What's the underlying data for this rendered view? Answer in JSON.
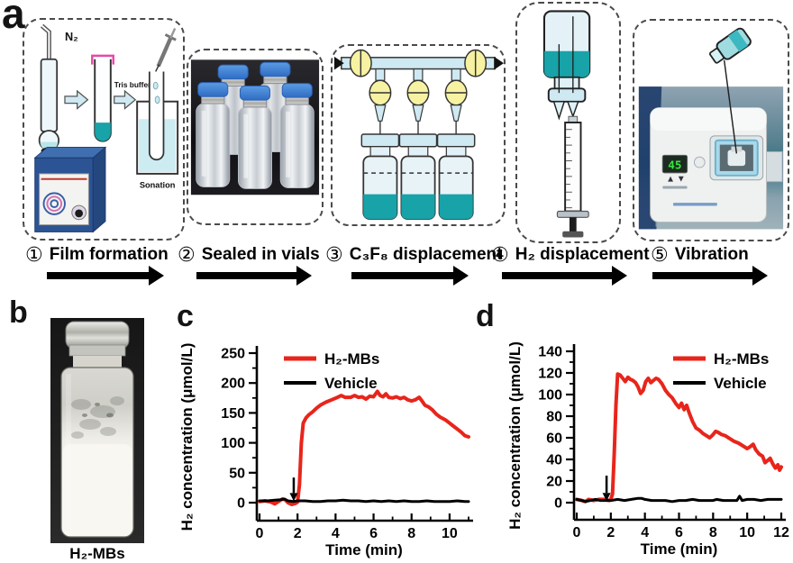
{
  "labels": {
    "a": "a",
    "b": "b",
    "c": "c",
    "d": "d"
  },
  "panel_a": {
    "steps": [
      {
        "number": "①",
        "label": "Film formation"
      },
      {
        "number": "②",
        "label": "Sealed in vials"
      },
      {
        "number": "③",
        "label": "C₃F₈ displacement"
      },
      {
        "number": "④",
        "label": "H₂ displacement"
      },
      {
        "number": "⑤",
        "label": "Vibration"
      }
    ],
    "film_formation": {
      "gas": "N₂",
      "buffer": "Tris buffer",
      "sonication": "Sonation"
    },
    "vibration": {
      "display": "45"
    }
  },
  "panel_b": {
    "caption": "H₂-MBs"
  },
  "colors": {
    "series_red": "#e8251b",
    "series_black": "#000000",
    "teal_liquid": "#17a3a8",
    "light_blue_fill": "#cfe9f2",
    "valve_yellow": "#f6f2a2",
    "vial_cap_blue": "#3f7fd6",
    "display_green": "#35e83a"
  },
  "chart_data": [
    {
      "id": "c",
      "type": "line",
      "title": "",
      "xlabel": "Time (min)",
      "ylabel": "H₂ concentration (μmol/L)",
      "xlim": [
        0,
        11
      ],
      "ylim": [
        0,
        250
      ],
      "xticks": [
        0,
        2,
        4,
        6,
        8,
        10
      ],
      "yticks": [
        0,
        50,
        100,
        150,
        200,
        250
      ],
      "x_minor_step": 1,
      "y_minor_step": 25,
      "legend_position": "top-left",
      "injection_arrow_x": 1.8,
      "arrow_y": [
        42,
        16
      ],
      "grid": false,
      "series": [
        {
          "name": "H₂-MBs",
          "color": "#e8251b",
          "width": 4,
          "points": [
            [
              0,
              2
            ],
            [
              0.3,
              3
            ],
            [
              0.6,
              1
            ],
            [
              0.8,
              -2
            ],
            [
              1.0,
              2
            ],
            [
              1.2,
              6
            ],
            [
              1.35,
              5
            ],
            [
              1.5,
              0
            ],
            [
              1.7,
              -3
            ],
            [
              1.9,
              -1
            ],
            [
              2.0,
              1
            ],
            [
              2.1,
              30
            ],
            [
              2.2,
              100
            ],
            [
              2.3,
              133
            ],
            [
              2.45,
              142
            ],
            [
              2.6,
              147
            ],
            [
              2.8,
              152
            ],
            [
              3.0,
              158
            ],
            [
              3.2,
              163
            ],
            [
              3.5,
              168
            ],
            [
              3.8,
              172
            ],
            [
              4.1,
              176
            ],
            [
              4.3,
              179
            ],
            [
              4.5,
              176
            ],
            [
              4.8,
              176
            ],
            [
              5.0,
              179
            ],
            [
              5.2,
              176
            ],
            [
              5.4,
              177
            ],
            [
              5.6,
              173
            ],
            [
              5.8,
              178
            ],
            [
              6.0,
              177
            ],
            [
              6.2,
              186
            ],
            [
              6.35,
              179
            ],
            [
              6.5,
              177
            ],
            [
              6.65,
              182
            ],
            [
              6.8,
              176
            ],
            [
              7.0,
              175
            ],
            [
              7.2,
              177
            ],
            [
              7.4,
              174
            ],
            [
              7.6,
              176
            ],
            [
              7.8,
              172
            ],
            [
              8.0,
              170
            ],
            [
              8.2,
              172
            ],
            [
              8.4,
              176
            ],
            [
              8.55,
              170
            ],
            [
              8.7,
              163
            ],
            [
              8.9,
              160
            ],
            [
              9.1,
              155
            ],
            [
              9.3,
              148
            ],
            [
              9.5,
              143
            ],
            [
              9.8,
              138
            ],
            [
              10.0,
              133
            ],
            [
              10.2,
              128
            ],
            [
              10.45,
              122
            ],
            [
              10.6,
              118
            ],
            [
              10.8,
              112
            ],
            [
              11.0,
              110
            ]
          ]
        },
        {
          "name": "Vehicle",
          "color": "#000000",
          "width": 3,
          "points": [
            [
              0,
              3
            ],
            [
              0.4,
              3
            ],
            [
              0.8,
              4
            ],
            [
              1.1,
              5
            ],
            [
              1.3,
              6
            ],
            [
              1.5,
              3
            ],
            [
              1.8,
              2
            ],
            [
              2.0,
              3
            ],
            [
              2.4,
              3
            ],
            [
              2.8,
              2
            ],
            [
              3.2,
              2
            ],
            [
              3.6,
              3
            ],
            [
              4.0,
              3
            ],
            [
              4.4,
              4
            ],
            [
              4.8,
              3
            ],
            [
              5.2,
              3
            ],
            [
              5.6,
              2
            ],
            [
              6.0,
              3
            ],
            [
              6.4,
              2
            ],
            [
              6.8,
              3
            ],
            [
              7.2,
              2
            ],
            [
              7.6,
              3
            ],
            [
              8.0,
              2
            ],
            [
              8.4,
              2
            ],
            [
              8.8,
              3
            ],
            [
              9.2,
              2
            ],
            [
              9.6,
              2
            ],
            [
              10.0,
              2
            ],
            [
              10.4,
              3
            ],
            [
              10.8,
              2
            ],
            [
              11.0,
              2
            ]
          ]
        }
      ]
    },
    {
      "id": "d",
      "type": "line",
      "title": "",
      "xlabel": "Time (min)",
      "ylabel": "H₂ concentration (μmol/L)",
      "xlim": [
        0,
        12
      ],
      "ylim": [
        0,
        140
      ],
      "xticks": [
        0,
        2,
        4,
        6,
        8,
        10,
        12
      ],
      "yticks": [
        0,
        20,
        40,
        60,
        80,
        100,
        120,
        140
      ],
      "x_minor_step": 1,
      "y_minor_step": 10,
      "legend_position": "top-right",
      "injection_arrow_x": 1.75,
      "arrow_y": [
        25,
        9
      ],
      "grid": false,
      "series": [
        {
          "name": "H₂-MBs",
          "color": "#e8251b",
          "width": 4,
          "points": [
            [
              0,
              3
            ],
            [
              0.3,
              2
            ],
            [
              0.5,
              1
            ],
            [
              0.7,
              3
            ],
            [
              1.0,
              2
            ],
            [
              1.3,
              3
            ],
            [
              1.6,
              3
            ],
            [
              1.9,
              2
            ],
            [
              2.0,
              3
            ],
            [
              2.1,
              8
            ],
            [
              2.2,
              45
            ],
            [
              2.3,
              90
            ],
            [
              2.4,
              119
            ],
            [
              2.55,
              118
            ],
            [
              2.7,
              115
            ],
            [
              2.85,
              112
            ],
            [
              3.0,
              116
            ],
            [
              3.15,
              114
            ],
            [
              3.3,
              113
            ],
            [
              3.45,
              111
            ],
            [
              3.6,
              107
            ],
            [
              3.75,
              101
            ],
            [
              3.9,
              104
            ],
            [
              4.05,
              112
            ],
            [
              4.2,
              115
            ],
            [
              4.35,
              111
            ],
            [
              4.5,
              113
            ],
            [
              4.65,
              115
            ],
            [
              4.8,
              114
            ],
            [
              5.0,
              110
            ],
            [
              5.2,
              104
            ],
            [
              5.4,
              100
            ],
            [
              5.6,
              97
            ],
            [
              5.8,
              92
            ],
            [
              6.0,
              88
            ],
            [
              6.15,
              92
            ],
            [
              6.3,
              86
            ],
            [
              6.45,
              90
            ],
            [
              6.6,
              83
            ],
            [
              6.8,
              75
            ],
            [
              7.0,
              69
            ],
            [
              7.2,
              67
            ],
            [
              7.4,
              64
            ],
            [
              7.6,
              62
            ],
            [
              7.8,
              60
            ],
            [
              8.0,
              63
            ],
            [
              8.15,
              66
            ],
            [
              8.3,
              65
            ],
            [
              8.5,
              63
            ],
            [
              8.7,
              62
            ],
            [
              9.0,
              59
            ],
            [
              9.2,
              57
            ],
            [
              9.5,
              55
            ],
            [
              9.8,
              52
            ],
            [
              10.0,
              50
            ],
            [
              10.2,
              52
            ],
            [
              10.35,
              54
            ],
            [
              10.5,
              49
            ],
            [
              10.7,
              45
            ],
            [
              10.9,
              43
            ],
            [
              11.05,
              37
            ],
            [
              11.2,
              39
            ],
            [
              11.35,
              41
            ],
            [
              11.5,
              36
            ],
            [
              11.65,
              32
            ],
            [
              11.8,
              35
            ],
            [
              11.9,
              30
            ],
            [
              12,
              33
            ]
          ]
        },
        {
          "name": "Vehicle",
          "color": "#000000",
          "width": 3,
          "points": [
            [
              0,
              3
            ],
            [
              0.3,
              2
            ],
            [
              0.5,
              1
            ],
            [
              0.8,
              2
            ],
            [
              1.1,
              3
            ],
            [
              1.4,
              2
            ],
            [
              1.7,
              2
            ],
            [
              2.0,
              2
            ],
            [
              2.4,
              3
            ],
            [
              2.8,
              2
            ],
            [
              3.2,
              3
            ],
            [
              3.6,
              4
            ],
            [
              3.8,
              4
            ],
            [
              4.0,
              3
            ],
            [
              4.4,
              2
            ],
            [
              4.8,
              2
            ],
            [
              5.2,
              2
            ],
            [
              5.6,
              1
            ],
            [
              6.0,
              2
            ],
            [
              6.4,
              2
            ],
            [
              6.8,
              3
            ],
            [
              7.2,
              2
            ],
            [
              7.6,
              2
            ],
            [
              8.0,
              2
            ],
            [
              8.2,
              3
            ],
            [
              8.6,
              2
            ],
            [
              9.0,
              2
            ],
            [
              9.4,
              2
            ],
            [
              9.55,
              6
            ],
            [
              9.7,
              2
            ],
            [
              10.0,
              3
            ],
            [
              10.4,
              3
            ],
            [
              10.8,
              2
            ],
            [
              11.2,
              3
            ],
            [
              11.6,
              3
            ],
            [
              12,
              3
            ]
          ]
        }
      ]
    }
  ]
}
